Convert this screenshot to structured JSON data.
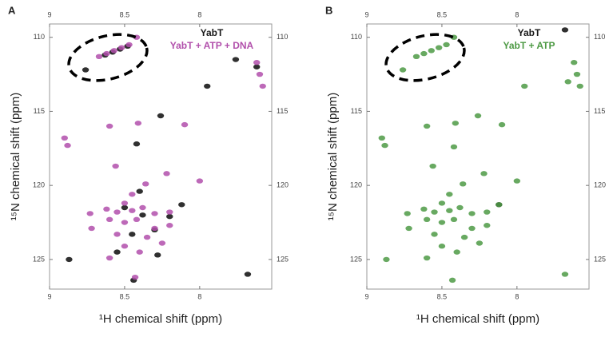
{
  "chart_data": [
    {
      "type": "scatter",
      "label": "A",
      "x_label": "¹H chemical shift (ppm)",
      "y_label": "¹⁵N chemical shift (ppm)",
      "xlim": [
        9.0,
        7.52
      ],
      "ylim": [
        109.1,
        127.0
      ],
      "xticks": [
        9.0,
        8.5,
        8.0
      ],
      "yticks": [
        110,
        115,
        120,
        125
      ],
      "legend": "top-right",
      "series": [
        {
          "name": "YabT",
          "color": "#1a1a1a",
          "x": [
            8.63,
            8.58,
            8.53,
            8.48,
            8.76,
            7.76,
            7.62,
            7.95,
            8.42,
            8.26,
            8.4,
            8.5,
            8.38,
            8.2,
            8.45,
            8.3,
            8.55,
            8.28,
            8.44,
            8.87,
            7.68,
            8.12
          ],
          "values": [
            111.2,
            111.0,
            110.8,
            110.6,
            112.2,
            111.5,
            112.0,
            113.3,
            117.2,
            115.3,
            120.4,
            121.5,
            122.0,
            122.1,
            123.3,
            123.0,
            124.5,
            124.7,
            126.4,
            125.0,
            126.0,
            121.3
          ]
        },
        {
          "name": "YabT + ATP + DNA",
          "color": "#b14fab",
          "x": [
            8.67,
            8.62,
            8.57,
            8.52,
            8.47,
            8.42,
            7.62,
            7.6,
            7.58,
            8.9,
            8.88,
            8.6,
            8.41,
            8.1,
            8.56,
            8.22,
            8.0,
            8.36,
            8.45,
            8.5,
            8.62,
            8.55,
            8.45,
            8.38,
            8.3,
            8.2,
            8.6,
            8.5,
            8.42,
            8.3,
            8.2,
            8.55,
            8.35,
            8.25,
            8.5,
            8.4,
            8.6,
            8.43,
            8.73,
            8.72
          ],
          "values": [
            111.3,
            111.1,
            110.9,
            110.7,
            110.5,
            110.0,
            111.7,
            112.5,
            113.3,
            116.8,
            117.3,
            116.0,
            115.8,
            115.9,
            118.7,
            119.2,
            119.7,
            119.9,
            120.6,
            121.2,
            121.6,
            121.8,
            121.7,
            121.5,
            121.9,
            121.8,
            122.3,
            122.5,
            122.3,
            122.9,
            122.7,
            123.3,
            123.5,
            123.9,
            124.1,
            124.5,
            124.9,
            126.2,
            121.9,
            122.9
          ]
        }
      ]
    },
    {
      "type": "scatter",
      "label": "B",
      "x_label": "¹H chemical shift (ppm)",
      "y_label": "¹⁵N chemical shift (ppm)",
      "xlim": [
        9.0,
        7.52
      ],
      "ylim": [
        109.1,
        127.0
      ],
      "xticks": [
        9.0,
        8.5,
        8.0
      ],
      "yticks": [
        110,
        115,
        120,
        125
      ],
      "legend": "top-right",
      "series": [
        {
          "name": "YabT",
          "color": "#1a1a1a",
          "x": [
            7.68,
            8.12
          ],
          "values": [
            109.5,
            121.3
          ]
        },
        {
          "name": "YabT + ATP",
          "color": "#4e9a45",
          "x": [
            8.67,
            8.62,
            8.57,
            8.52,
            8.47,
            8.42,
            8.76,
            7.62,
            7.6,
            7.58,
            7.66,
            8.9,
            8.88,
            8.6,
            8.41,
            8.26,
            8.1,
            8.42,
            8.56,
            8.22,
            8.0,
            8.36,
            8.45,
            8.5,
            8.62,
            8.55,
            8.45,
            8.38,
            8.3,
            8.2,
            8.6,
            8.5,
            8.42,
            8.3,
            8.2,
            8.55,
            8.35,
            8.25,
            8.5,
            8.4,
            8.6,
            8.43,
            8.73,
            8.72,
            8.87,
            7.68,
            8.12,
            7.95
          ],
          "values": [
            111.3,
            111.1,
            110.9,
            110.7,
            110.5,
            110.0,
            112.2,
            111.7,
            112.5,
            113.3,
            113.0,
            116.8,
            117.3,
            116.0,
            115.8,
            115.3,
            115.9,
            117.4,
            118.7,
            119.2,
            119.7,
            119.9,
            120.6,
            121.2,
            121.6,
            121.8,
            121.7,
            121.5,
            121.9,
            121.8,
            122.3,
            122.5,
            122.3,
            122.9,
            122.7,
            123.3,
            123.5,
            123.9,
            124.1,
            124.5,
            124.9,
            126.4,
            121.9,
            122.9,
            125.0,
            126.0,
            121.3,
            113.3
          ]
        }
      ]
    }
  ]
}
